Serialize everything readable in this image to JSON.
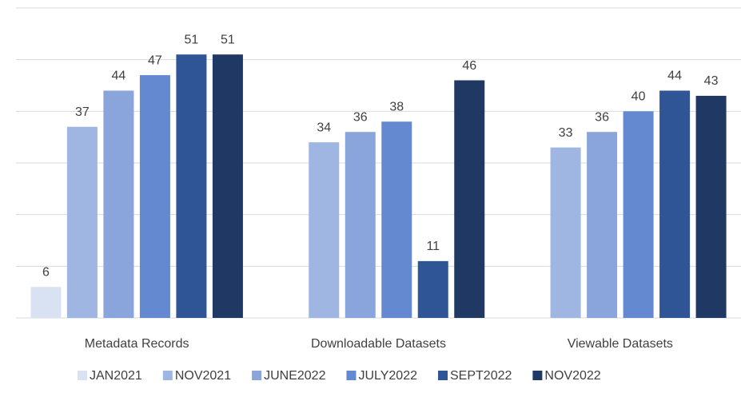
{
  "chart_data": {
    "type": "bar",
    "categories": [
      "Metadata Records",
      "Downloadable Datasets",
      "Viewable Datasets"
    ],
    "series": [
      {
        "name": "JAN2021",
        "color": "#d9e2f3",
        "values": [
          6,
          null,
          null
        ]
      },
      {
        "name": "NOV2021",
        "color": "#a0b6e2",
        "values": [
          37,
          34,
          33
        ]
      },
      {
        "name": "JUNE2022",
        "color": "#8aa5dc",
        "values": [
          44,
          36,
          36
        ]
      },
      {
        "name": "JULY2022",
        "color": "#6489d1",
        "values": [
          47,
          38,
          40
        ]
      },
      {
        "name": "SEPT2022",
        "color": "#2f5597",
        "values": [
          51,
          11,
          44
        ]
      },
      {
        "name": "NOV2022",
        "color": "#203864",
        "values": [
          51,
          46,
          43
        ]
      }
    ],
    "ylim": [
      0,
      60
    ],
    "yticks": [
      0,
      10,
      20,
      30,
      40,
      50,
      60
    ],
    "grid": true,
    "legend": "bottom"
  }
}
